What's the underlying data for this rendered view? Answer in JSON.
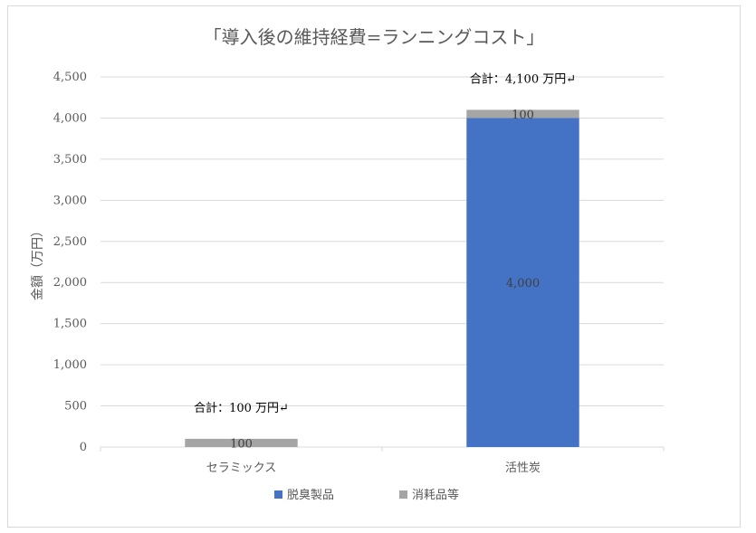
{
  "chart_data": {
    "type": "bar",
    "stacked": true,
    "title": "「導入後の維持経費=ランニングコスト」",
    "xlabel": "",
    "ylabel": "金額（万円）",
    "categories": [
      "セラミックス",
      "活性炭"
    ],
    "series": [
      {
        "name": "脱臭製品",
        "values": [
          0,
          4000
        ],
        "color": "#4472c4"
      },
      {
        "name": "消耗品等",
        "values": [
          100,
          100
        ],
        "color": "#a5a5a5"
      }
    ],
    "data_labels": [
      {
        "category": "セラミックス",
        "series": "消耗品等",
        "text": "100"
      },
      {
        "category": "活性炭",
        "series": "消耗品等",
        "text": "100"
      },
      {
        "category": "活性炭",
        "series": "脱臭製品",
        "text": "4,000"
      }
    ],
    "annotations": [
      {
        "category": "セラミックス",
        "text": "合計：100 万円↵"
      },
      {
        "category": "活性炭",
        "text": "合計：4,100 万円↵"
      }
    ],
    "ylim": [
      0,
      4500
    ],
    "yticks": [
      0,
      500,
      1000,
      1500,
      2000,
      2500,
      3000,
      3500,
      4000,
      4500
    ],
    "ytick_labels": [
      "0",
      "500",
      "1,000",
      "1,500",
      "2,000",
      "2,500",
      "3,000",
      "3,500",
      "4,000",
      "4,500"
    ],
    "grid": true,
    "legend_position": "bottom"
  }
}
